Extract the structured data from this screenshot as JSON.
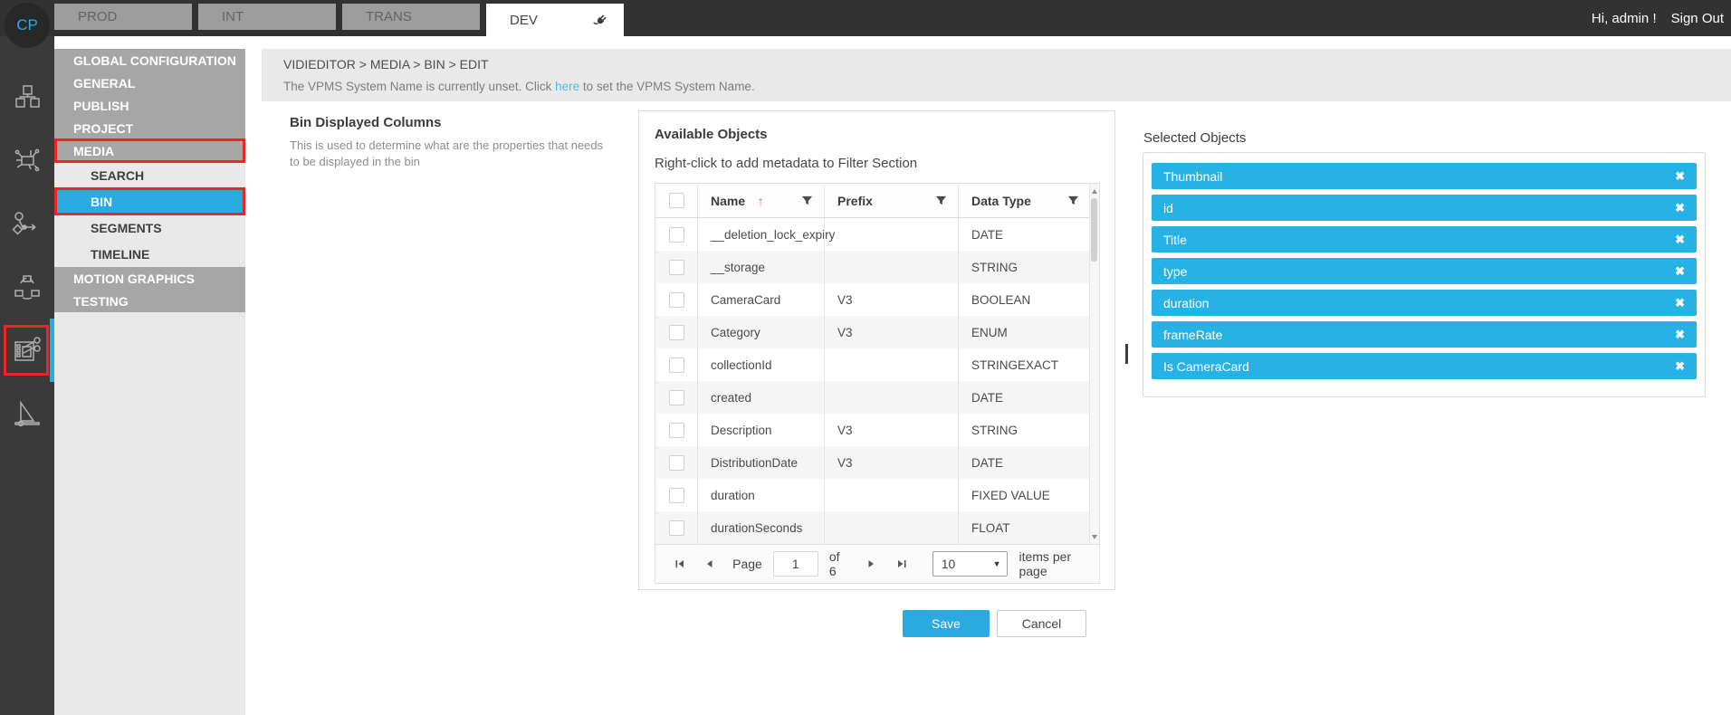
{
  "colors": {
    "accent": "#29abe2",
    "chip_blue": "#27b2e5",
    "highlight_red": "#ee2524",
    "tab_gray": "#9d9d9d"
  },
  "topbar": {
    "logo": "CP",
    "tabs": [
      {
        "label": "PROD",
        "active": false
      },
      {
        "label": "INT",
        "active": false
      },
      {
        "label": "TRANS",
        "active": false
      },
      {
        "label": "DEV",
        "active": true,
        "icon": "plug-icon"
      }
    ],
    "greeting": "Hi, admin !",
    "sign_out": "Sign Out"
  },
  "rail": {
    "items": [
      {
        "name": "assets-cubes-icon",
        "active": false
      },
      {
        "name": "ingest-machine-icon",
        "active": false
      },
      {
        "name": "workflow-icon",
        "active": false
      },
      {
        "name": "transcode-cycle-icon",
        "active": false
      },
      {
        "name": "video-editor-icon",
        "active": true
      },
      {
        "name": "logger-tool-icon",
        "active": false
      }
    ]
  },
  "sidebar": {
    "items": [
      {
        "label": "GLOBAL CONFIGURATION",
        "variant": "top",
        "flagged": false,
        "active": false
      },
      {
        "label": "GENERAL",
        "variant": "top",
        "flagged": false,
        "active": false
      },
      {
        "label": "PUBLISH",
        "variant": "top",
        "flagged": false,
        "active": false
      },
      {
        "label": "PROJECT",
        "variant": "top",
        "flagged": false,
        "active": false
      },
      {
        "label": "MEDIA",
        "variant": "top",
        "flagged": true,
        "active": false
      },
      {
        "label": "SEARCH",
        "variant": "sub",
        "flagged": false,
        "active": false
      },
      {
        "label": "BIN",
        "variant": "sub",
        "flagged": true,
        "active": true
      },
      {
        "label": "SEGMENTS",
        "variant": "sub",
        "flagged": false,
        "active": false
      },
      {
        "label": "TIMELINE",
        "variant": "sub",
        "flagged": false,
        "active": false
      },
      {
        "label": "MOTION GRAPHICS",
        "variant": "top",
        "flagged": false,
        "active": false
      },
      {
        "label": "TESTING",
        "variant": "top",
        "flagged": false,
        "active": false
      }
    ]
  },
  "breadcrumb": "VIDIEDITOR > MEDIA > BIN > EDIT",
  "notice": {
    "pre": "The VPMS System Name is currently unset. Click ",
    "link": "here",
    "post": " to set the VPMS System Name."
  },
  "section": {
    "title": "Bin Displayed Columns",
    "description": "This is used to determine what are the properties that needs to be displayed in the bin"
  },
  "available": {
    "title": "Available Objects",
    "hint": "Right-click to add metadata to Filter Section",
    "columns": [
      "Name",
      "Prefix",
      "Data Type"
    ],
    "sort": {
      "column": "Name",
      "direction": "asc"
    },
    "rows": [
      {
        "name": "__deletion_lock_expiry",
        "prefix": "",
        "type": "DATE"
      },
      {
        "name": "__storage",
        "prefix": "",
        "type": "STRING"
      },
      {
        "name": "CameraCard",
        "prefix": "V3",
        "type": "BOOLEAN"
      },
      {
        "name": "Category",
        "prefix": "V3",
        "type": "ENUM"
      },
      {
        "name": "collectionId",
        "prefix": "",
        "type": "STRINGEXACT"
      },
      {
        "name": "created",
        "prefix": "",
        "type": "DATE"
      },
      {
        "name": "Description",
        "prefix": "V3",
        "type": "STRING"
      },
      {
        "name": "DistributionDate",
        "prefix": "V3",
        "type": "DATE"
      },
      {
        "name": "duration",
        "prefix": "",
        "type": "FIXED VALUE"
      },
      {
        "name": "durationSeconds",
        "prefix": "",
        "type": "FLOAT"
      }
    ],
    "pager": {
      "page_label": "Page",
      "current": "1",
      "total_label": "of 6",
      "page_size": "10",
      "items_label": "items per page"
    }
  },
  "selected": {
    "title": "Selected Objects",
    "chips": [
      "Thumbnail",
      "id",
      "Title",
      "type",
      "duration",
      "frameRate",
      "Is CameraCard"
    ]
  },
  "actions": {
    "save": "Save",
    "cancel": "Cancel"
  },
  "icons": [
    "plug-icon",
    "filter-icon",
    "sort-asc-icon",
    "chip-remove-icon",
    "pager-first-icon",
    "pager-prev-icon",
    "pager-next-icon",
    "pager-last-icon",
    "dropdown-caret-icon",
    "scrollbar-up-icon",
    "scrollbar-down-icon"
  ]
}
